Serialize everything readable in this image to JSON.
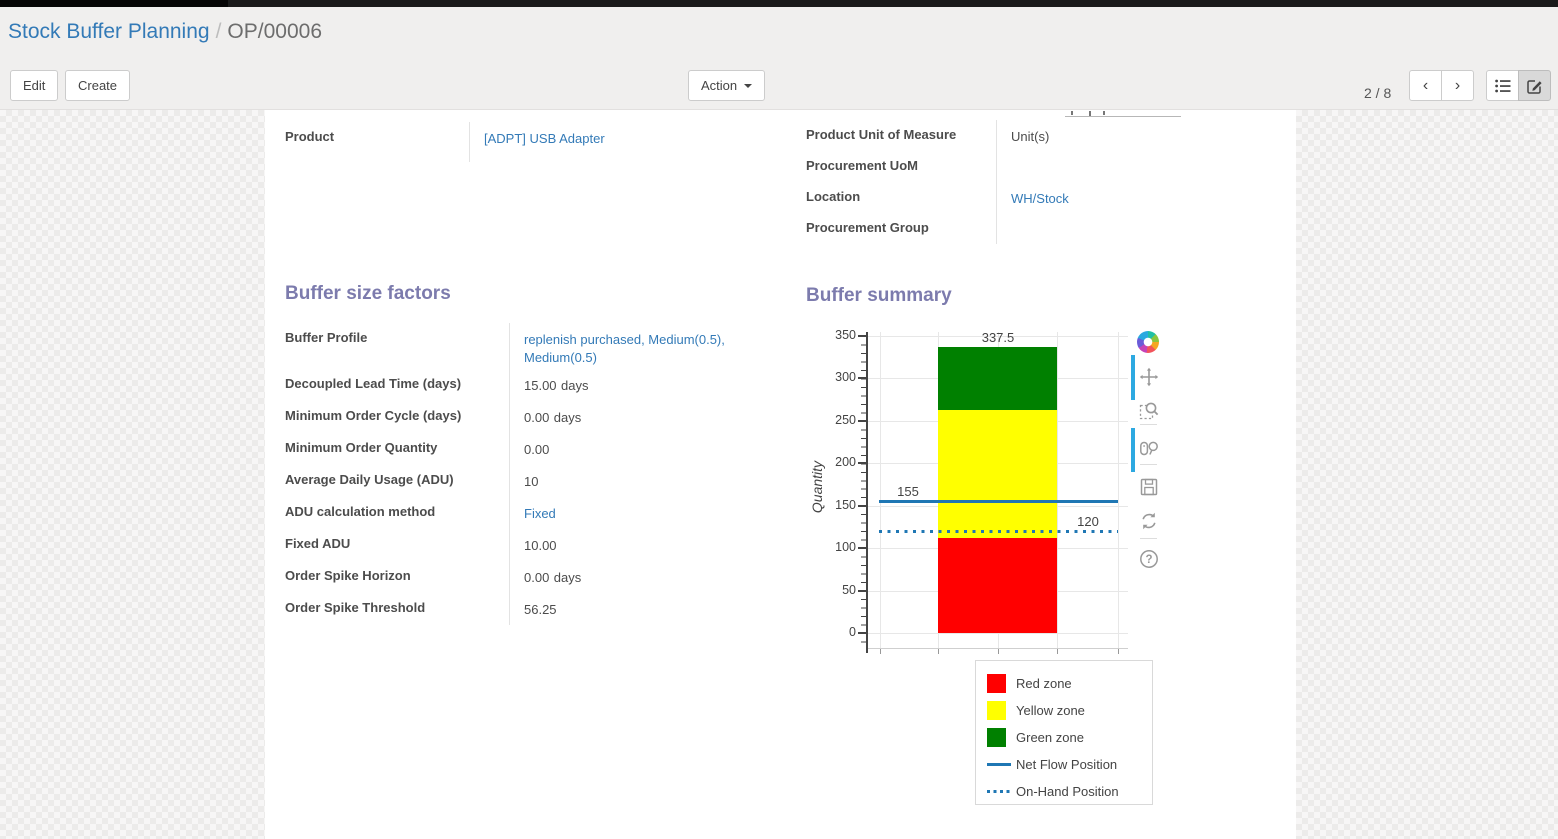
{
  "header": {
    "breadcrumb": {
      "parent": "Stock Buffer Planning",
      "separator": "/",
      "current": "OP/00006"
    },
    "edit_label": "Edit",
    "create_label": "Create",
    "action_label": "Action",
    "pager": "2 / 8"
  },
  "form": {
    "product": {
      "label": "Product",
      "value": "[ADPT] USB Adapter"
    },
    "right_fields": [
      {
        "label": "Product Unit of Measure",
        "value": "Unit(s)",
        "link": false
      },
      {
        "label": "Procurement UoM",
        "value": "",
        "link": false
      },
      {
        "label": "Location",
        "value": "WH/Stock",
        "link": true
      },
      {
        "label": "Procurement Group",
        "value": "",
        "link": false
      }
    ],
    "buffer_factors": {
      "title": "Buffer size factors",
      "rows": [
        {
          "label": "Buffer Profile",
          "value": "replenish purchased, Medium(0.5), Medium(0.5)",
          "suffix": "",
          "link": true
        },
        {
          "label": "Decoupled Lead Time (days)",
          "value": "15.00",
          "suffix": "days",
          "link": false
        },
        {
          "label": "Minimum Order Cycle (days)",
          "value": "0.00",
          "suffix": "days",
          "link": false
        },
        {
          "label": "Minimum Order Quantity",
          "value": "0.00",
          "suffix": "",
          "link": false
        },
        {
          "label": "Average Daily Usage (ADU)",
          "value": "10",
          "suffix": "",
          "link": false
        },
        {
          "label": "ADU calculation method",
          "value": "Fixed",
          "suffix": "",
          "link": true
        },
        {
          "label": "Fixed ADU",
          "value": "10.00",
          "suffix": "",
          "link": false
        },
        {
          "label": "Order Spike Horizon",
          "value": "0.00",
          "suffix": "days",
          "link": false
        },
        {
          "label": "Order Spike Threshold",
          "value": "56.25",
          "suffix": "",
          "link": false
        }
      ]
    },
    "buffer_summary_title": "Buffer summary"
  },
  "chart_data": {
    "type": "bar",
    "stacked": true,
    "title": "Buffer summary",
    "categories": [
      ""
    ],
    "series": [
      {
        "name": "Red zone",
        "values": [
          112.5
        ],
        "color": "#ff0000",
        "top_label": "112.5"
      },
      {
        "name": "Yellow zone",
        "values": [
          150
        ],
        "color": "#ffff00",
        "top_label": "262.5"
      },
      {
        "name": "Green zone",
        "values": [
          75
        ],
        "color": "#008000",
        "top_label": "337.5"
      }
    ],
    "hlines": [
      {
        "name": "Net Flow Position",
        "value": 155,
        "label": "155",
        "style": "solid",
        "color": "#1f77b4",
        "label_side": "left"
      },
      {
        "name": "On-Hand Position",
        "value": 120,
        "label": "120",
        "style": "dotted",
        "color": "#1f77b4",
        "label_side": "right"
      }
    ],
    "ylabel": "Quantity",
    "yticks": [
      0,
      50,
      100,
      150,
      200,
      250,
      300,
      350
    ],
    "ylim": [
      -17,
      355
    ],
    "grid": true,
    "legend": {
      "position": "bottom-right",
      "entries": [
        {
          "label": "Red zone",
          "swatch": "square",
          "color": "#ff0000"
        },
        {
          "label": "Yellow zone",
          "swatch": "square",
          "color": "#ffff00"
        },
        {
          "label": "Green zone",
          "swatch": "square",
          "color": "#008000"
        },
        {
          "label": "Net Flow Position",
          "swatch": "line",
          "color": "#1f77b4"
        },
        {
          "label": "On-Hand Position",
          "swatch": "dotted-line",
          "color": "#1f77b4"
        }
      ]
    },
    "modebar_icons": [
      "pan-icon",
      "box-zoom-icon",
      "hover-compare-icon",
      "save-icon",
      "reset-axes-icon",
      "help-icon"
    ]
  },
  "colors": {
    "accent_heading": "#7c7bad",
    "link": "#337ab7",
    "net_flow_line": "#1f77b4",
    "red_zone": "#ff0000",
    "yellow_zone": "#ffff00",
    "green_zone": "#008000",
    "modebar_active": "#2da9e1"
  }
}
